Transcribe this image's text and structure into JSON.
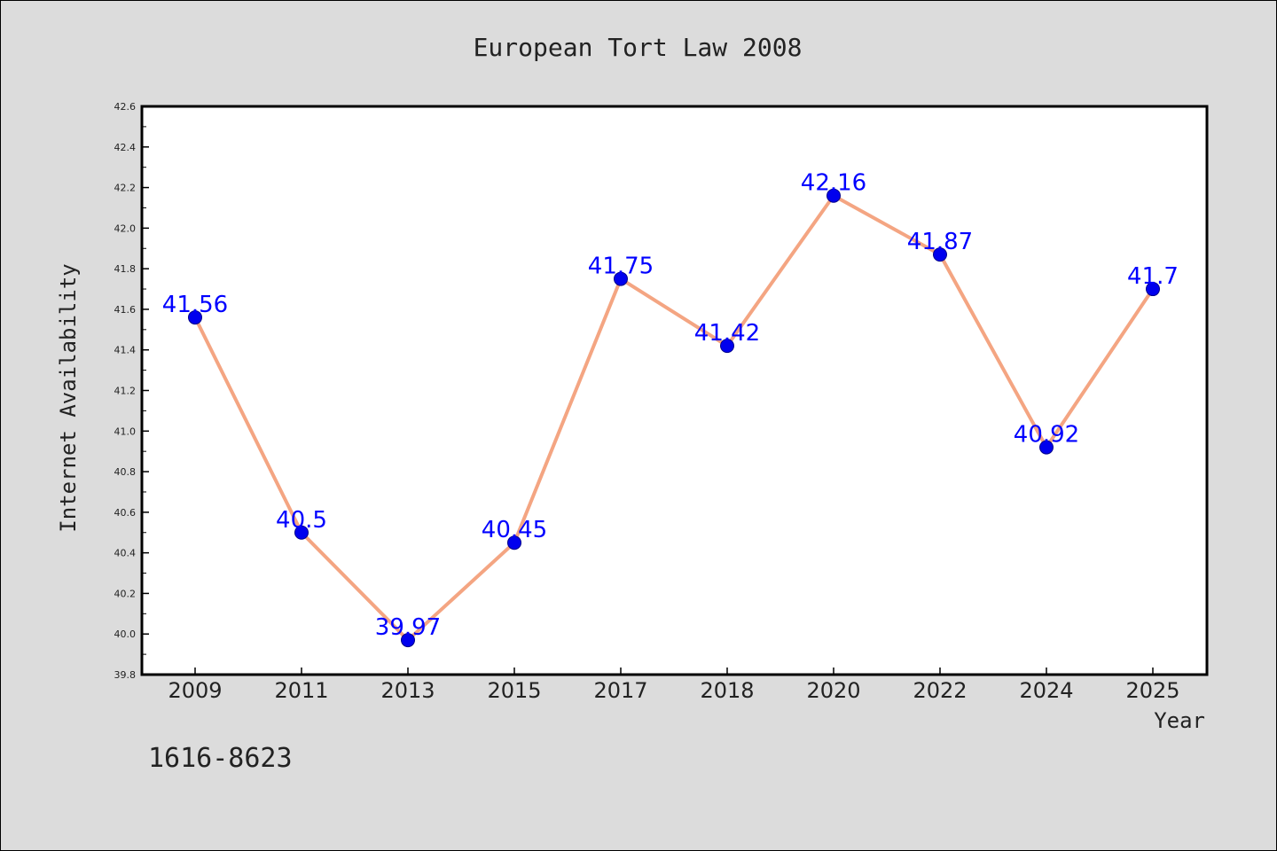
{
  "colors": {
    "background": "#dcdcdc",
    "plot_background": "#ffffff",
    "line": "#f4a582",
    "marker": "#0000ee",
    "data_label": "#0000ff",
    "text": "#222222"
  },
  "footer_text": "1616-8623",
  "chart_data": {
    "type": "line",
    "title": "European Tort Law 2008",
    "xlabel": "Year",
    "ylabel": "Internet Availability",
    "categories": [
      "2009",
      "2011",
      "2013",
      "2015",
      "2017",
      "2018",
      "2020",
      "2022",
      "2024",
      "2025"
    ],
    "series": [
      {
        "values": [
          41.56,
          40.5,
          39.97,
          40.45,
          41.75,
          41.42,
          42.16,
          41.87,
          40.92,
          41.7
        ],
        "labels": [
          "41.56",
          "40.5",
          "39.97",
          "40.45",
          "41.75",
          "41.42",
          "42.16",
          "41.87",
          "40.92",
          "41.7"
        ]
      }
    ],
    "ylim": [
      39.8,
      42.6
    ],
    "yticks": [
      "39.8",
      "40.0",
      "40.2",
      "40.4",
      "40.6",
      "40.8",
      "41.0",
      "41.2",
      "41.4",
      "41.6",
      "41.8",
      "42.0",
      "42.2",
      "42.4",
      "42.6"
    ],
    "grid": false,
    "legend": "none"
  }
}
